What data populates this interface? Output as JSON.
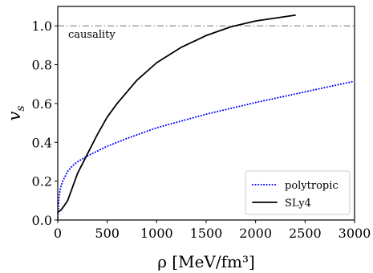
{
  "chart_data": {
    "type": "line",
    "xlim": [
      0,
      3000
    ],
    "ylim": [
      0,
      1.1
    ],
    "xlabel": "ρ [MeV/fm³]",
    "ylabel": "v_s",
    "x_ticks": [
      0,
      500,
      1000,
      1500,
      2000,
      2500,
      3000
    ],
    "x_tick_labels": [
      "0",
      "500",
      "1000",
      "1500",
      "2000",
      "2500",
      "3000"
    ],
    "y_ticks": [
      0.0,
      0.2,
      0.4,
      0.6,
      0.8,
      1.0
    ],
    "y_tick_labels": [
      "0.0",
      "0.2",
      "0.4",
      "0.6",
      "0.8",
      "1.0"
    ],
    "grid": false,
    "legend_position": "bottom-right",
    "series": [
      {
        "name": "polytropic",
        "style": "dotted",
        "color": "#0000ff",
        "x": [
          0,
          10,
          25,
          50,
          100,
          150,
          200,
          300,
          400,
          500,
          700,
          1000,
          1250,
          1500,
          2000,
          2500,
          3000
        ],
        "y": [
          0.0,
          0.1,
          0.16,
          0.2,
          0.25,
          0.28,
          0.3,
          0.33,
          0.355,
          0.38,
          0.42,
          0.475,
          0.51,
          0.545,
          0.605,
          0.66,
          0.715
        ]
      },
      {
        "name": "SLy4",
        "style": "solid",
        "color": "#000000",
        "x": [
          0,
          30,
          60,
          100,
          150,
          200,
          300,
          400,
          500,
          600,
          700,
          800,
          1000,
          1250,
          1500,
          1750,
          2000,
          2200,
          2400
        ],
        "y": [
          0.04,
          0.05,
          0.07,
          0.1,
          0.17,
          0.24,
          0.34,
          0.44,
          0.53,
          0.6,
          0.66,
          0.72,
          0.81,
          0.89,
          0.95,
          0.995,
          1.025,
          1.04,
          1.055
        ]
      }
    ],
    "reference_line": {
      "label": "causality",
      "y": 1.0,
      "style": "dash-dot",
      "color": "#808080"
    }
  }
}
